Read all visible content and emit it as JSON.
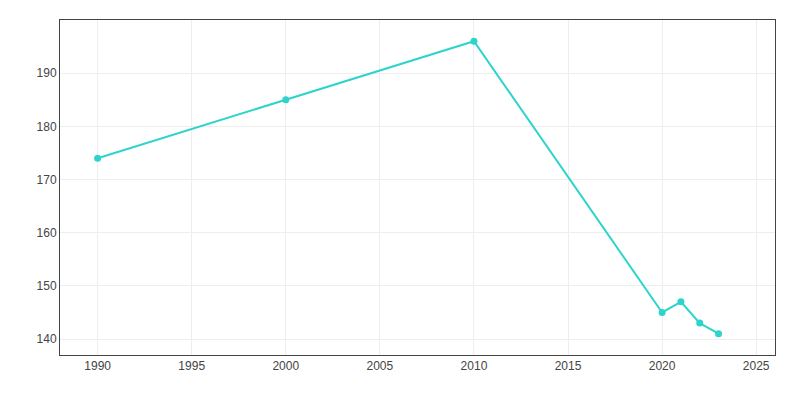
{
  "chart_data": {
    "type": "line",
    "x": [
      1990,
      2000,
      2010,
      2020,
      2021,
      2022,
      2023
    ],
    "values": [
      174,
      185,
      196,
      145,
      147,
      143,
      141
    ],
    "color": "#2DD4CC",
    "marker": "circle",
    "xlim": [
      1988,
      2026
    ],
    "ylim": [
      137,
      200
    ],
    "xticks": [
      1990,
      1995,
      2000,
      2005,
      2010,
      2015,
      2020,
      2025
    ],
    "yticks": [
      140,
      150,
      160,
      170,
      180,
      190
    ],
    "grid": true
  }
}
